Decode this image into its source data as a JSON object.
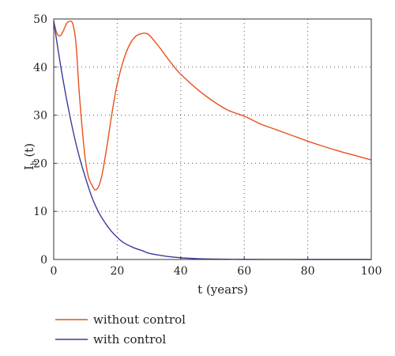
{
  "chart_data": {
    "type": "line",
    "xlabel": "t (years)",
    "ylabel": "I",
    "ylabel_sub": "h",
    "ylabel_suffix": "(t)",
    "xlim": [
      0,
      100
    ],
    "ylim": [
      0,
      50
    ],
    "x_ticks": [
      0,
      20,
      40,
      60,
      80,
      100
    ],
    "y_ticks": [
      0,
      10,
      20,
      30,
      40,
      50
    ],
    "grid": "dotted",
    "legend_position": "below plot",
    "series": [
      {
        "name": "without control",
        "color": "#e8501e",
        "x": [
          0,
          1,
          2,
          3,
          4,
          5,
          6,
          7,
          8,
          9,
          10,
          11,
          12,
          13,
          14,
          15,
          16,
          17,
          18,
          19,
          20,
          22,
          24,
          26,
          28,
          29,
          30,
          32,
          34,
          36,
          38,
          40,
          45,
          50,
          55,
          60,
          65,
          70,
          75,
          80,
          85,
          90,
          95,
          100
        ],
        "y": [
          49.5,
          47.0,
          46.5,
          47.5,
          49.0,
          49.5,
          49.0,
          45.0,
          35.0,
          27.0,
          20.5,
          17.0,
          15.5,
          14.5,
          15.0,
          17.0,
          20.5,
          24.5,
          29.0,
          33.0,
          36.5,
          41.5,
          44.8,
          46.5,
          47.0,
          47.0,
          46.7,
          45.2,
          43.5,
          41.7,
          40.0,
          38.5,
          35.5,
          33.0,
          31.0,
          29.8,
          28.2,
          27.0,
          25.8,
          24.6,
          23.5,
          22.5,
          21.6,
          20.7
        ]
      },
      {
        "name": "with control",
        "color": "#3b3b9c",
        "x": [
          0,
          2,
          4,
          6,
          8,
          10,
          12,
          14,
          16,
          18,
          20,
          22,
          25,
          28,
          30,
          35,
          40,
          45,
          50,
          55,
          60,
          70,
          80,
          90,
          100
        ],
        "y": [
          49.5,
          41.0,
          33.5,
          27.0,
          21.5,
          17.0,
          13.0,
          10.0,
          7.8,
          6.0,
          4.6,
          3.5,
          2.5,
          1.8,
          1.3,
          0.7,
          0.35,
          0.18,
          0.1,
          0.05,
          0.02,
          0.01,
          0.0,
          0.0,
          0.0
        ]
      }
    ]
  }
}
